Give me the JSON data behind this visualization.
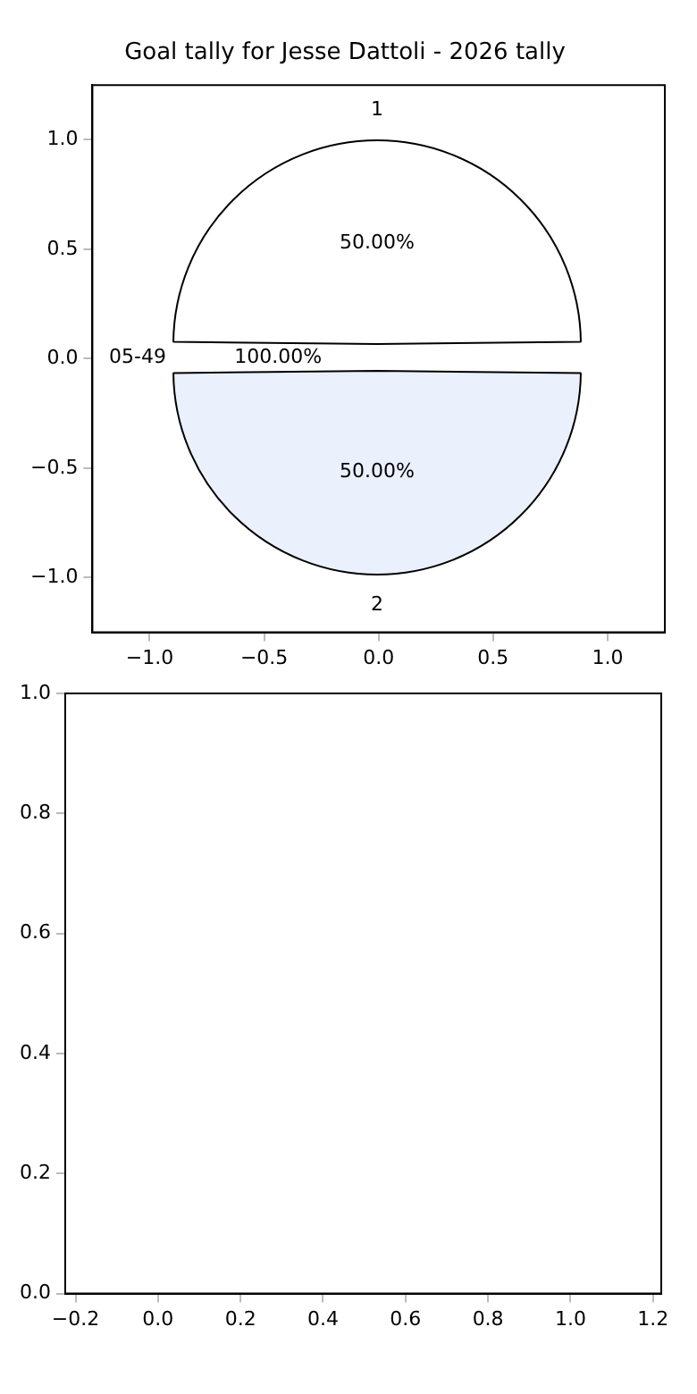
{
  "chart_data": [
    {
      "type": "scatter",
      "title": "Goal tally for Jesse Dattoli - 2026 tally",
      "xlim": [
        -1.25,
        1.25
      ],
      "xticks": [
        {
          "value": -1,
          "label": "−1.0"
        },
        {
          "value": -0.5,
          "label": "−0.5"
        },
        {
          "value": 0,
          "label": "0.0"
        },
        {
          "value": 0.5,
          "label": "0.5"
        },
        {
          "value": 1,
          "label": "1.0"
        }
      ],
      "ylim": [
        -1.25,
        1.25
      ],
      "yticks": [
        {
          "value": -1,
          "label": "−1.0"
        },
        {
          "value": -0.5,
          "label": "−0.5"
        },
        {
          "value": 0,
          "label": "0.0"
        },
        {
          "value": 0.5,
          "label": "0.5"
        },
        {
          "value": 1,
          "label": "1.0"
        }
      ]
    },
    {
      "type": "pie",
      "categories": [
        "1",
        "2"
      ],
      "values": [
        50,
        50
      ],
      "colors": [
        "#ffffff",
        "#eaf0fc"
      ],
      "value_labels": [
        "50.00%",
        "50.00%"
      ],
      "annotations": [
        "05-49",
        "100.00%"
      ]
    },
    {
      "type": "scatter",
      "xlim": [
        -0.225,
        1.22
      ],
      "xticks": [
        {
          "value": -0.2,
          "label": "−0.2"
        },
        {
          "value": 0,
          "label": "0.0"
        },
        {
          "value": 0.2,
          "label": "0.2"
        },
        {
          "value": 0.4,
          "label": "0.4"
        },
        {
          "value": 0.6,
          "label": "0.6"
        },
        {
          "value": 0.8,
          "label": "0.8"
        },
        {
          "value": 1,
          "label": "1.0"
        },
        {
          "value": 1.2,
          "label": "1.2"
        }
      ],
      "ylim": [
        0,
        1
      ],
      "yticks": [
        {
          "value": 0,
          "label": "0.0"
        },
        {
          "value": 0.2,
          "label": "0.2"
        },
        {
          "value": 0.4,
          "label": "0.4"
        },
        {
          "value": 0.6,
          "label": "0.6"
        },
        {
          "value": 0.8,
          "label": "0.8"
        },
        {
          "value": 1,
          "label": "1.0"
        }
      ]
    }
  ]
}
